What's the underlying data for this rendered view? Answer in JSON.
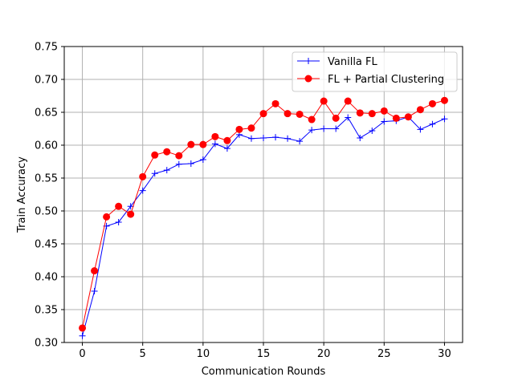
{
  "chart_data": {
    "type": "line",
    "xlabel": "Communication Rounds",
    "ylabel": "Train Accuracy",
    "xlim": [
      -1.5,
      31.5
    ],
    "ylim": [
      0.3,
      0.75
    ],
    "xticks": [
      0,
      5,
      10,
      15,
      20,
      25,
      30
    ],
    "xtick_labels": [
      "0",
      "5",
      "10",
      "15",
      "20",
      "25",
      "30"
    ],
    "yticks": [
      0.3,
      0.35,
      0.4,
      0.45,
      0.5,
      0.55,
      0.6,
      0.65,
      0.7,
      0.75
    ],
    "ytick_labels": [
      "0.30",
      "0.35",
      "0.40",
      "0.45",
      "0.50",
      "0.55",
      "0.60",
      "0.65",
      "0.70",
      "0.75"
    ],
    "grid": true,
    "legend_position": "top-right",
    "x": [
      0,
      1,
      2,
      3,
      4,
      5,
      6,
      7,
      8,
      9,
      10,
      11,
      12,
      13,
      14,
      15,
      16,
      17,
      18,
      19,
      20,
      21,
      22,
      23,
      24,
      25,
      26,
      27,
      28,
      29,
      30
    ],
    "series": [
      {
        "name": "Vanilla FL",
        "color": "#0000ff",
        "marker": "plus",
        "values": [
          0.31,
          0.378,
          0.477,
          0.483,
          0.507,
          0.531,
          0.557,
          0.562,
          0.571,
          0.572,
          0.578,
          0.602,
          0.595,
          0.616,
          0.61,
          0.611,
          0.612,
          0.61,
          0.606,
          0.623,
          0.625,
          0.625,
          0.642,
          0.611,
          0.622,
          0.636,
          0.637,
          0.643,
          0.624,
          0.632,
          0.64
        ]
      },
      {
        "name": "FL + Partial Clustering",
        "color": "#ff0000",
        "marker": "circle",
        "values": [
          0.322,
          0.409,
          0.491,
          0.507,
          0.495,
          0.552,
          0.585,
          0.59,
          0.584,
          0.601,
          0.601,
          0.613,
          0.607,
          0.624,
          0.626,
          0.648,
          0.663,
          0.648,
          0.647,
          0.639,
          0.667,
          0.641,
          0.667,
          0.649,
          0.648,
          0.652,
          0.641,
          0.643,
          0.654,
          0.663,
          0.668
        ]
      }
    ]
  }
}
